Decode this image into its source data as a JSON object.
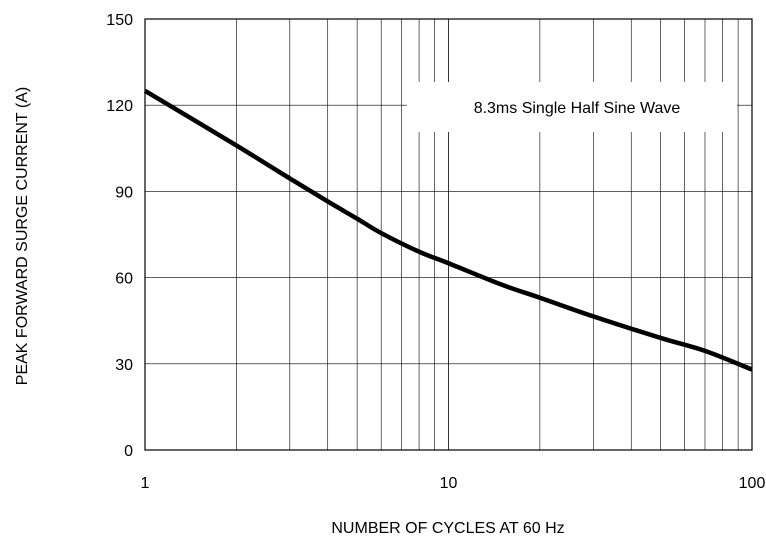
{
  "chart_data": {
    "type": "line",
    "title": "",
    "xlabel": "NUMBER OF CYCLES AT 60 Hz",
    "ylabel": "PEAK FORWARD SURGE CURRENT (A)",
    "xscale": "log",
    "xlim": [
      1,
      100
    ],
    "ylim": [
      0,
      150
    ],
    "xticks": [
      1,
      10,
      100
    ],
    "xtick_labels": [
      "1",
      "10",
      "100"
    ],
    "yticks": [
      0,
      30,
      60,
      90,
      120,
      150
    ],
    "ytick_labels": [
      "0",
      "30",
      "60",
      "90",
      "120",
      "150"
    ],
    "grid": true,
    "annotation": "8.3ms Single Half Sine Wave",
    "series": [
      {
        "x": [
          1,
          2,
          3,
          4,
          5,
          6,
          8,
          10,
          15,
          20,
          30,
          50,
          70,
          100
        ],
        "y": [
          125,
          106,
          94.5,
          86.5,
          80.5,
          75.5,
          69,
          65,
          57.5,
          53,
          46.5,
          39,
          34.5,
          28
        ]
      }
    ]
  }
}
